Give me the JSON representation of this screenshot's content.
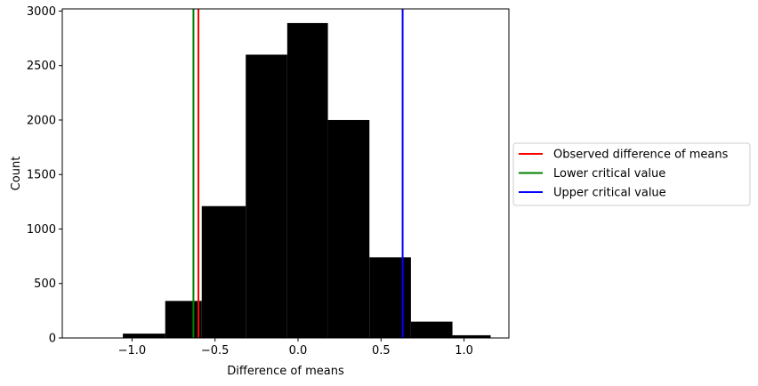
{
  "chart_data": {
    "type": "histogram",
    "xlabel": "Difference of means",
    "ylabel": "Count",
    "xlim": [
      -1.42,
      1.27
    ],
    "ylim": [
      0,
      3020
    ],
    "xticks": [
      -1.0,
      -0.5,
      0.0,
      0.5,
      1.0
    ],
    "xtick_labels": [
      "−1.0",
      "−0.5",
      "0.0",
      "0.5",
      "1.0"
    ],
    "yticks": [
      0,
      500,
      1000,
      1500,
      2000,
      2500,
      3000
    ],
    "ytick_labels": [
      "0",
      "500",
      "1000",
      "1500",
      "2000",
      "2500",
      "3000"
    ],
    "bin_edges": [
      -1.055,
      -0.8,
      -0.58,
      -0.315,
      -0.065,
      0.18,
      0.43,
      0.68,
      0.93,
      1.16
    ],
    "counts": [
      40,
      340,
      1210,
      2600,
      2890,
      2000,
      740,
      150,
      25
    ],
    "bar_color": "#000000",
    "vlines": [
      {
        "name": "Observed difference of means",
        "x": -0.6,
        "color": "#ff0000"
      },
      {
        "name": "Lower critical value",
        "x": -0.63,
        "color": "#008000"
      },
      {
        "name": "Upper critical value",
        "x": 0.63,
        "color": "#0000ff"
      }
    ],
    "legend_position": "right (outside, center)",
    "grid": false
  }
}
